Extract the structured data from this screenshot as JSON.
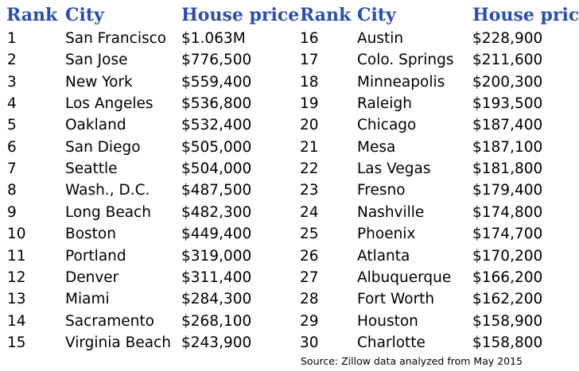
{
  "headers": {
    "rank": "Rank",
    "city": "City",
    "price": "House price"
  },
  "left_rows": [
    {
      "rank": "1",
      "city": "San Francisco",
      "price": "$1.063M"
    },
    {
      "rank": "2",
      "city": "San Jose",
      "price": "$776,500"
    },
    {
      "rank": "3",
      "city": "New York",
      "price": "$559,400"
    },
    {
      "rank": "4",
      "city": "Los Angeles",
      "price": "$536,800"
    },
    {
      "rank": "5",
      "city": "Oakland",
      "price": "$532,400"
    },
    {
      "rank": "6",
      "city": "San Diego",
      "price": "$505,000"
    },
    {
      "rank": "7",
      "city": "Seattle",
      "price": "$504,000"
    },
    {
      "rank": "8",
      "city": "Wash., D.C.",
      "price": "$487,500"
    },
    {
      "rank": "9",
      "city": "Long Beach",
      "price": "$482,300"
    },
    {
      "rank": "10",
      "city": "Boston",
      "price": "$449,400"
    },
    {
      "rank": "11",
      "city": "Portland",
      "price": "$319,000"
    },
    {
      "rank": "12",
      "city": "Denver",
      "price": "$311,400"
    },
    {
      "rank": "13",
      "city": "Miami",
      "price": "$284,300"
    },
    {
      "rank": "14",
      "city": "Sacramento",
      "price": "$268,100"
    },
    {
      "rank": "15",
      "city": "Virginia Beach",
      "price": "$243,900"
    }
  ],
  "right_rows": [
    {
      "rank": "16",
      "city": "Austin",
      "price": "$228,900"
    },
    {
      "rank": "17",
      "city": "Colo. Springs",
      "price": "$211,600"
    },
    {
      "rank": "18",
      "city": "Minneapolis",
      "price": "$200,300"
    },
    {
      "rank": "19",
      "city": "Raleigh",
      "price": "$193,500"
    },
    {
      "rank": "20",
      "city": "Chicago",
      "price": "$187,400"
    },
    {
      "rank": "21",
      "city": "Mesa",
      "price": "$187,100"
    },
    {
      "rank": "22",
      "city": "Las Vegas",
      "price": "$181,800"
    },
    {
      "rank": "23",
      "city": "Fresno",
      "price": "$179,400"
    },
    {
      "rank": "24",
      "city": "Nashville",
      "price": "$174,800"
    },
    {
      "rank": "25",
      "city": "Phoenix",
      "price": "$174,700"
    },
    {
      "rank": "26",
      "city": "Atlanta",
      "price": "$170,200"
    },
    {
      "rank": "27",
      "city": "Albuquerque",
      "price": "$166,200"
    },
    {
      "rank": "28",
      "city": "Fort Worth",
      "price": "$162,200"
    },
    {
      "rank": "29",
      "city": "Houston",
      "price": "$158,900"
    },
    {
      "rank": "30",
      "city": "Charlotte",
      "price": "$158,800"
    }
  ],
  "source": "Source: Zillow data analyzed from May 2015",
  "colors": {
    "header": "#2a4fb0",
    "text": "#000000",
    "background": "#ffffff"
  }
}
